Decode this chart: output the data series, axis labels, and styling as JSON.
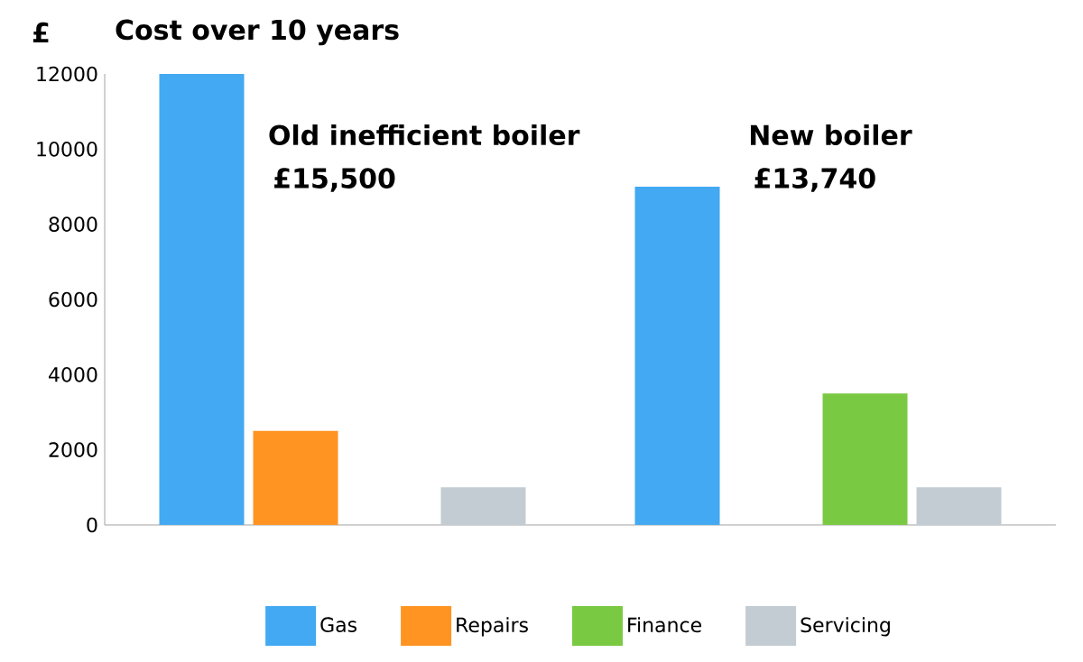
{
  "chart_data": {
    "type": "bar",
    "title": "Cost over 10 years",
    "ylabel": "£",
    "categories": [
      null,
      null
    ],
    "series": [
      {
        "name": "Gas",
        "color": "#42a9f2",
        "values": [
          12000,
          9000
        ]
      },
      {
        "name": "Repairs",
        "color": "#ff9422",
        "values": [
          2500,
          null
        ]
      },
      {
        "name": "Finance",
        "color": "#7ac943",
        "values": [
          null,
          3500
        ]
      },
      {
        "name": "Servicing",
        "color": "#c3ccd3",
        "values": [
          1000,
          1000
        ]
      }
    ],
    "ylim": [
      0,
      12000
    ],
    "yticks": [
      0,
      2000,
      4000,
      6000,
      8000,
      10000,
      12000
    ],
    "grid": false,
    "legend": "bottom",
    "annotations": [
      "Old inefficient boiler",
      "£15,500",
      "New boiler",
      "£13,740"
    ]
  }
}
